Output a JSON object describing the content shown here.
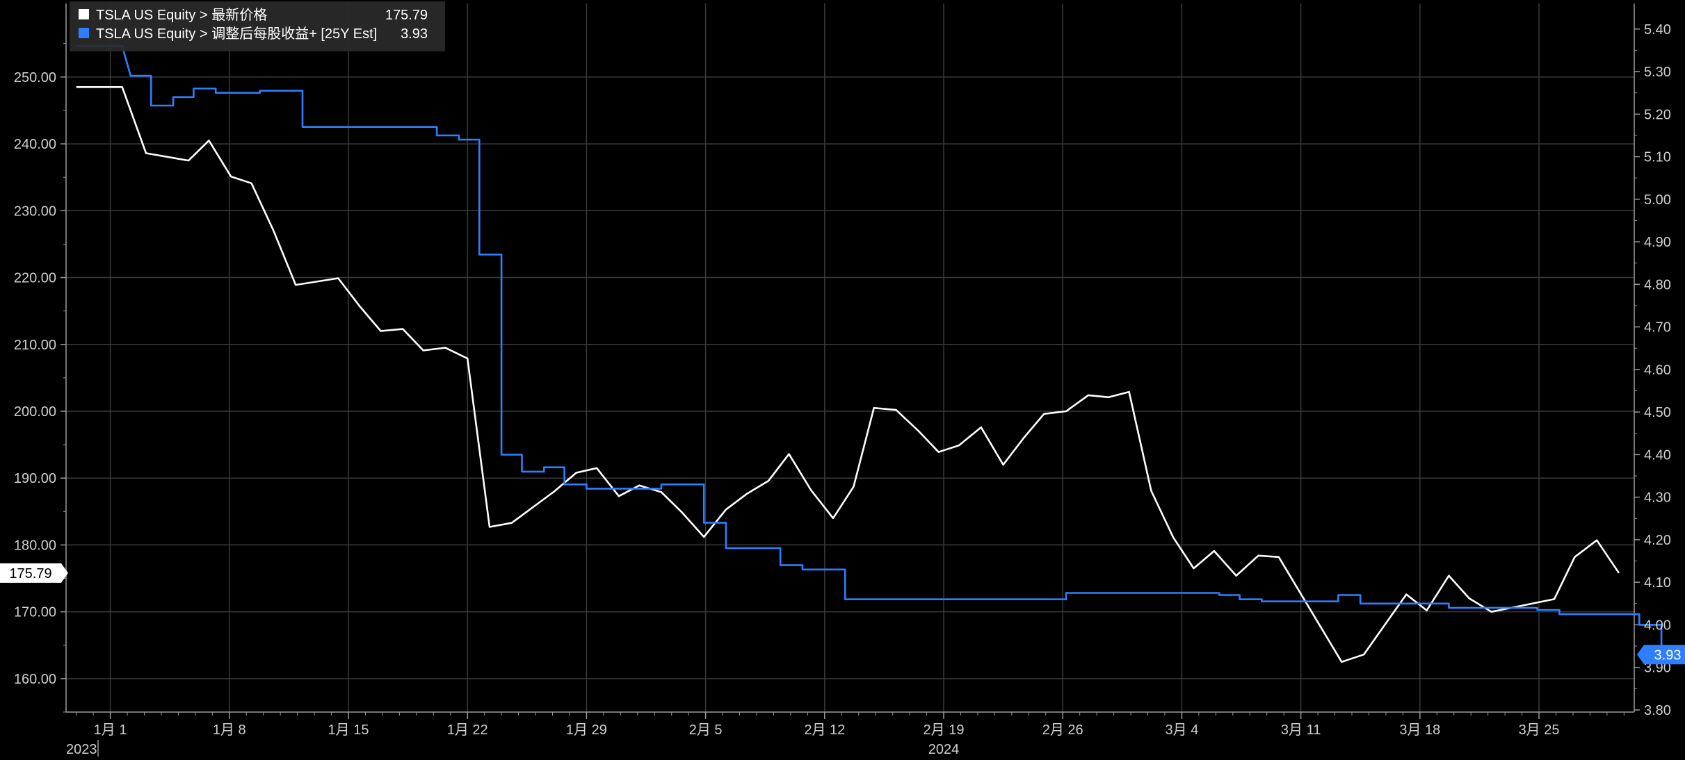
{
  "chart_data": {
    "type": "line",
    "title": "",
    "xlabel": "",
    "ylabel": "",
    "x_tick_labels": [
      "1月 1",
      "1月 8",
      "1月 15",
      "1月 22",
      "1月 29",
      "2月 5",
      "2月 12",
      "2月 19",
      "2月 26",
      "3月 4",
      "3月 11",
      "3月 18",
      "3月 25"
    ],
    "x_tick_days": [
      1,
      8,
      15,
      22,
      29,
      36,
      43,
      50,
      57,
      64,
      71,
      78,
      85
    ],
    "year_labels": [
      {
        "text": "2023",
        "day": -1.6
      },
      {
        "text": "2024",
        "day": 50
      }
    ],
    "x_domain_days": [
      -1.6,
      90.6
    ],
    "y_left": {
      "min": 155,
      "max": 261,
      "ticks": [
        160,
        170,
        180,
        190,
        200,
        210,
        220,
        230,
        240,
        250
      ]
    },
    "y_right": {
      "min": 3.795,
      "max": 5.46,
      "ticks": [
        3.8,
        3.9,
        4.0,
        4.1,
        4.2,
        4.3,
        4.4,
        4.5,
        4.6,
        4.7,
        4.8,
        4.9,
        5.0,
        5.1,
        5.2,
        5.3,
        5.4
      ]
    },
    "grid": true,
    "legend_position": "top-left",
    "series": [
      {
        "name": "TSLA US Equity > 最新价格",
        "axis": "left",
        "color": "#ffffff",
        "last_value": "175.79",
        "step": false,
        "points": [
          [
            -1.0,
            248.5
          ],
          [
            0.5,
            248.5
          ],
          [
            1.7,
            248.5
          ],
          [
            3.1,
            238.6
          ],
          [
            5.6,
            237.5
          ],
          [
            6.8,
            240.5
          ],
          [
            8.1,
            235.1
          ],
          [
            9.3,
            234.1
          ],
          [
            10.6,
            227.0
          ],
          [
            11.9,
            218.9
          ],
          [
            14.4,
            219.9
          ],
          [
            15.7,
            215.6
          ],
          [
            16.9,
            212.0
          ],
          [
            18.2,
            212.3
          ],
          [
            19.4,
            209.1
          ],
          [
            20.7,
            209.5
          ],
          [
            22.0,
            207.9
          ],
          [
            23.3,
            182.7
          ],
          [
            24.6,
            183.3
          ],
          [
            27.1,
            188.0
          ],
          [
            28.4,
            190.8
          ],
          [
            29.6,
            191.5
          ],
          [
            30.9,
            187.3
          ],
          [
            32.1,
            188.9
          ],
          [
            33.4,
            187.9
          ],
          [
            34.6,
            184.9
          ],
          [
            35.9,
            181.2
          ],
          [
            37.2,
            185.3
          ],
          [
            38.4,
            187.6
          ],
          [
            39.7,
            189.6
          ],
          [
            40.9,
            193.6
          ],
          [
            42.2,
            188.2
          ],
          [
            43.5,
            184.0
          ],
          [
            44.7,
            188.7
          ],
          [
            45.9,
            200.5
          ],
          [
            47.2,
            200.2
          ],
          [
            48.5,
            197.1
          ],
          [
            49.7,
            193.9
          ],
          [
            50.9,
            194.9
          ],
          [
            52.2,
            197.6
          ],
          [
            53.5,
            192.0
          ],
          [
            54.7,
            196.0
          ],
          [
            55.9,
            199.6
          ],
          [
            57.2,
            200.0
          ],
          [
            58.5,
            202.4
          ],
          [
            59.7,
            202.1
          ],
          [
            60.9,
            202.9
          ],
          [
            62.2,
            188.1
          ],
          [
            63.5,
            181.1
          ],
          [
            64.7,
            176.5
          ],
          [
            65.9,
            179.1
          ],
          [
            67.2,
            175.4
          ],
          [
            68.5,
            178.4
          ],
          [
            69.7,
            178.2
          ],
          [
            73.4,
            162.5
          ],
          [
            74.7,
            163.6
          ],
          [
            77.2,
            172.6
          ],
          [
            78.4,
            170.2
          ],
          [
            79.7,
            175.4
          ],
          [
            80.9,
            172.0
          ],
          [
            82.2,
            170.0
          ],
          [
            85.9,
            171.9
          ],
          [
            87.1,
            178.2
          ],
          [
            88.4,
            180.7
          ],
          [
            89.7,
            175.8
          ]
        ]
      },
      {
        "name": "TSLA US Equity > 调整后每股收益+ [25Y Est]",
        "axis": "right",
        "color": "#2e7fff",
        "last_value": "3.93",
        "step": true,
        "points": [
          [
            -1.0,
            5.36
          ],
          [
            1.7,
            5.36
          ],
          [
            2.2,
            5.29
          ],
          [
            3.4,
            5.29
          ],
          [
            3.4,
            5.22
          ],
          [
            4.7,
            5.22
          ],
          [
            4.7,
            5.24
          ],
          [
            5.9,
            5.24
          ],
          [
            5.9,
            5.26
          ],
          [
            7.2,
            5.26
          ],
          [
            7.2,
            5.25
          ],
          [
            9.8,
            5.25
          ],
          [
            9.8,
            5.255
          ],
          [
            12.3,
            5.255
          ],
          [
            12.3,
            5.17
          ],
          [
            20.2,
            5.17
          ],
          [
            20.2,
            5.15
          ],
          [
            21.5,
            5.15
          ],
          [
            21.5,
            5.14
          ],
          [
            22.7,
            5.14
          ],
          [
            22.7,
            4.87
          ],
          [
            24.0,
            4.87
          ],
          [
            24.0,
            4.4
          ],
          [
            25.2,
            4.4
          ],
          [
            25.2,
            4.36
          ],
          [
            26.5,
            4.36
          ],
          [
            26.5,
            4.37
          ],
          [
            27.7,
            4.37
          ],
          [
            27.7,
            4.33
          ],
          [
            29.0,
            4.33
          ],
          [
            29.0,
            4.32
          ],
          [
            33.4,
            4.32
          ],
          [
            33.4,
            4.33
          ],
          [
            35.9,
            4.33
          ],
          [
            35.9,
            4.24
          ],
          [
            37.2,
            4.24
          ],
          [
            37.2,
            4.18
          ],
          [
            40.4,
            4.18
          ],
          [
            40.4,
            4.14
          ],
          [
            41.7,
            4.14
          ],
          [
            41.7,
            4.13
          ],
          [
            44.2,
            4.13
          ],
          [
            44.2,
            4.06
          ],
          [
            57.2,
            4.06
          ],
          [
            57.2,
            4.075
          ],
          [
            66.2,
            4.075
          ],
          [
            66.2,
            4.07
          ],
          [
            67.4,
            4.07
          ],
          [
            67.4,
            4.06
          ],
          [
            68.7,
            4.06
          ],
          [
            68.7,
            4.055
          ],
          [
            73.2,
            4.055
          ],
          [
            73.2,
            4.07
          ],
          [
            74.5,
            4.07
          ],
          [
            74.5,
            4.05
          ],
          [
            79.7,
            4.05
          ],
          [
            79.7,
            4.04
          ],
          [
            84.9,
            4.04
          ],
          [
            84.9,
            4.035
          ],
          [
            86.2,
            4.035
          ],
          [
            86.2,
            4.025
          ],
          [
            90.9,
            4.025
          ],
          [
            90.9,
            4.0
          ],
          [
            92.2,
            4.0
          ],
          [
            92.2,
            3.94
          ],
          [
            93.5,
            3.94
          ],
          [
            93.5,
            3.93
          ]
        ]
      }
    ]
  }
}
